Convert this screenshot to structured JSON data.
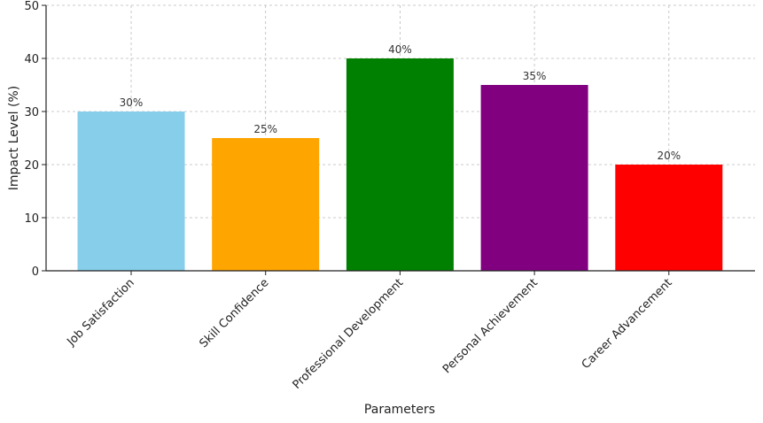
{
  "chart_data": {
    "type": "bar",
    "categories": [
      "Job Satisfaction",
      "Skill Confidence",
      "Professional Development",
      "Personal Achievement",
      "Career Advancement"
    ],
    "values": [
      30,
      25,
      40,
      35,
      20
    ],
    "data_labels": [
      "30%",
      "25%",
      "40%",
      "35%",
      "20%"
    ],
    "colors": [
      "#87CEEB",
      "#FFA500",
      "#008000",
      "#800080",
      "#FF0000"
    ],
    "title": "",
    "xlabel": "Parameters",
    "ylabel": "Impact Level (%)",
    "ylim": [
      0,
      50
    ],
    "yticks": [
      0,
      10,
      20,
      30,
      40,
      50
    ],
    "grid": true,
    "legend": "none"
  }
}
